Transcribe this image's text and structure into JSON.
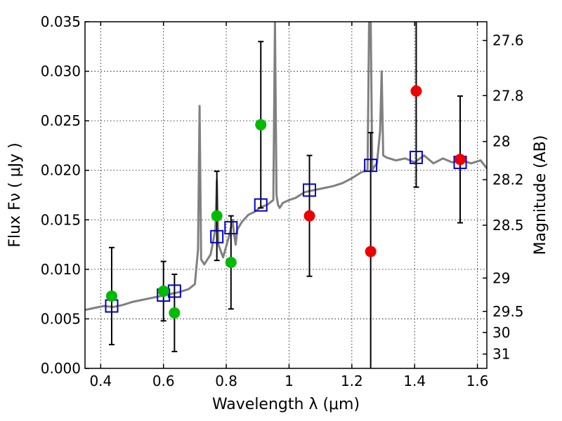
{
  "chart_data": {
    "type": "scatter",
    "xlabel": "Wavelength  λ (μm)",
    "ylabel": "Flux  Fν  ( μJy )",
    "ylabel_right": "Magnitude (AB)",
    "xlim": [
      0.35,
      1.63
    ],
    "ylim": [
      0,
      0.035
    ],
    "grid": true,
    "colors": {
      "spectrum": "#808080",
      "model_box": "#0000cc",
      "detection": "#00bb00",
      "non_detection": "#ee0000",
      "errorbar": "#000000"
    },
    "x_ticks": [
      {
        "value": 0.4,
        "label": "0.4"
      },
      {
        "value": 0.6,
        "label": "0.6"
      },
      {
        "value": 0.8,
        "label": "0.8"
      },
      {
        "value": 1.0,
        "label": "1"
      },
      {
        "value": 1.2,
        "label": "1.2"
      },
      {
        "value": 1.4,
        "label": "1.4"
      },
      {
        "value": 1.6,
        "label": "1.6"
      }
    ],
    "y_ticks": [
      {
        "value": 0.0,
        "label": "0.000"
      },
      {
        "value": 0.005,
        "label": "0.005"
      },
      {
        "value": 0.01,
        "label": "0.010"
      },
      {
        "value": 0.015,
        "label": "0.015"
      },
      {
        "value": 0.02,
        "label": "0.020"
      },
      {
        "value": 0.025,
        "label": "0.025"
      },
      {
        "value": 0.03,
        "label": "0.030"
      },
      {
        "value": 0.035,
        "label": "0.035"
      }
    ],
    "y_ticks_right": [
      {
        "value": 27.6,
        "label": "27.6"
      },
      {
        "value": 27.8,
        "label": "27.8"
      },
      {
        "value": 28.0,
        "label": "28"
      },
      {
        "value": 28.2,
        "label": "28.2"
      },
      {
        "value": 28.5,
        "label": "28.5"
      },
      {
        "value": 29.0,
        "label": "29"
      },
      {
        "value": 29.5,
        "label": "29.5"
      },
      {
        "value": 30.0,
        "label": "30"
      },
      {
        "value": 31.0,
        "label": "31"
      }
    ],
    "spectrum": {
      "x": [
        0.35,
        0.38,
        0.41,
        0.44,
        0.47,
        0.5,
        0.53,
        0.56,
        0.59,
        0.62,
        0.65,
        0.68,
        0.7,
        0.71,
        0.715,
        0.72,
        0.73,
        0.75,
        0.765,
        0.77,
        0.775,
        0.79,
        0.81,
        0.82,
        0.825,
        0.83,
        0.835,
        0.85,
        0.87,
        0.89,
        0.91,
        0.93,
        0.95,
        0.955,
        0.96,
        0.965,
        0.97,
        0.98,
        1.0,
        1.02,
        1.05,
        1.08,
        1.11,
        1.14,
        1.17,
        1.2,
        1.23,
        1.25,
        1.255,
        1.26,
        1.265,
        1.27,
        1.28,
        1.29,
        1.295,
        1.3,
        1.31,
        1.34,
        1.37,
        1.4,
        1.43,
        1.46,
        1.49,
        1.52,
        1.55,
        1.58,
        1.61,
        1.63
      ],
      "y": [
        0.0059,
        0.0061,
        0.0063,
        0.0062,
        0.0064,
        0.0067,
        0.0069,
        0.0071,
        0.0073,
        0.0075,
        0.0077,
        0.008,
        0.0085,
        0.012,
        0.0265,
        0.011,
        0.0105,
        0.0115,
        0.014,
        0.019,
        0.0125,
        0.0112,
        0.0135,
        0.015,
        0.0135,
        0.0125,
        0.014,
        0.0148,
        0.0155,
        0.0158,
        0.0163,
        0.0165,
        0.017,
        0.035,
        0.0175,
        0.0165,
        0.0162,
        0.0167,
        0.017,
        0.0172,
        0.0178,
        0.018,
        0.0182,
        0.0184,
        0.0187,
        0.0192,
        0.0198,
        0.02,
        0.035,
        0.035,
        0.02,
        0.0203,
        0.0207,
        0.024,
        0.03,
        0.0215,
        0.0213,
        0.021,
        0.0212,
        0.0208,
        0.0215,
        0.0207,
        0.0212,
        0.0208,
        0.021,
        0.0207,
        0.021,
        0.0202
      ]
    },
    "model_points": {
      "x": [
        0.435,
        0.6,
        0.635,
        0.77,
        0.815,
        0.91,
        1.065,
        1.26,
        1.405,
        1.545
      ],
      "y": [
        0.0063,
        0.0074,
        0.0078,
        0.0133,
        0.0142,
        0.0165,
        0.018,
        0.0205,
        0.0213,
        0.0208
      ]
    },
    "detections": {
      "x": [
        0.435,
        0.6,
        0.635,
        0.77,
        0.815,
        0.91
      ],
      "y": [
        0.0073,
        0.0078,
        0.0056,
        0.0154,
        0.0107,
        0.0246
      ],
      "err": [
        0.0049,
        0.003,
        0.0039,
        0.0045,
        0.0047,
        0.0084
      ]
    },
    "non_detections": {
      "x": [
        1.065,
        1.26,
        1.405,
        1.545
      ],
      "y": [
        0.0154,
        0.0118,
        0.028,
        0.0211
      ],
      "err": [
        0.0061,
        0.012,
        0.0097,
        0.0064
      ]
    }
  }
}
